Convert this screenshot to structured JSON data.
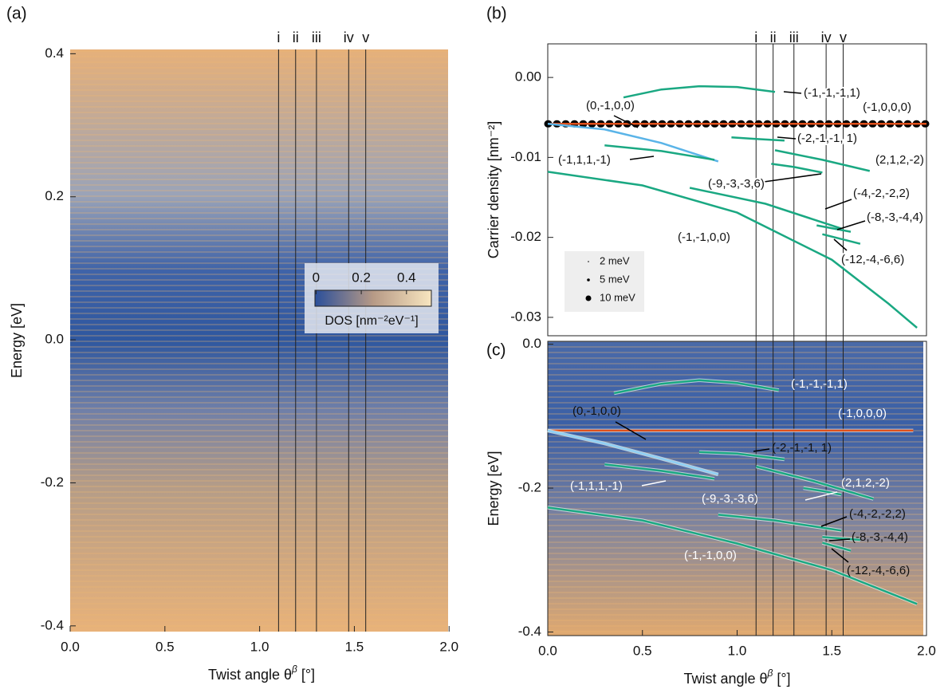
{
  "chart_data": [
    {
      "type": "heatmap",
      "panel": "(a)",
      "ylabel": "Energy [eV]",
      "xlabel": [
        "Twist angle θ",
        "β",
        " [°]"
      ],
      "xlim": [
        0,
        2.02
      ],
      "ylim": [
        -0.408,
        0.406
      ],
      "xticks": [
        {
          "value": 0,
          "label": "0.0"
        },
        0.5,
        {
          "value": 1,
          "label": "1.0"
        },
        1.5,
        {
          "value": 2,
          "label": "2.0"
        }
      ],
      "yticks": [
        -0.4,
        -0.2,
        {
          "value": 0,
          "label": "0.0"
        },
        0.2,
        0.4
      ],
      "markers": [
        {
          "value": 1.1,
          "label": "i"
        },
        {
          "value": 1.19,
          "label": "ii"
        },
        {
          "value": 1.3,
          "label": "iii"
        },
        {
          "value": 1.47,
          "label": "iv"
        },
        {
          "value": 1.56,
          "label": "v"
        }
      ],
      "colorbar": {
        "label": "DOS [nm⁻²eV⁻¹]",
        "lim": [
          -0.005,
          0.51
        ],
        "ticks": [
          0,
          0.2,
          0.4
        ]
      }
    },
    {
      "type": "line",
      "panel": "(b)",
      "ylabel": "Carrier density [nm⁻²]",
      "xlim": [
        0,
        2
      ],
      "ylim": [
        -0.0323,
        0.0042
      ],
      "yticks": [
        {
          "value": 0,
          "label": "0.00"
        },
        {
          "value": -0.01,
          "label": "-0.01"
        },
        {
          "value": -0.02,
          "label": "-0.02"
        },
        {
          "value": -0.03,
          "label": "-0.03"
        }
      ],
      "markers": [
        {
          "value": 1.1,
          "label": "i"
        },
        {
          "value": 1.19,
          "label": "ii"
        },
        {
          "value": 1.3,
          "label": "iii"
        },
        {
          "value": 1.47,
          "label": "iv"
        },
        {
          "value": 1.56,
          "label": "v"
        }
      ],
      "legend": [
        "2 meV",
        "5 meV",
        "10 meV"
      ],
      "series": [
        {
          "name": "(-1,0,0,0)",
          "color": "#e0501b",
          "x": [
            0,
            2
          ],
          "values": [
            -0.0058,
            -0.0058
          ]
        },
        {
          "name": "(0,-1,0,0)",
          "color": "#5ab4e8",
          "x": [
            0,
            0.3,
            0.6,
            0.9
          ],
          "values": [
            -0.0058,
            -0.0065,
            -0.0082,
            -0.0105
          ]
        },
        {
          "name": "(-1,-1,-1,1)",
          "color": "#1aa882",
          "x": [
            0.4,
            0.6,
            0.8,
            1.0,
            1.2
          ],
          "values": [
            -0.0025,
            -0.0015,
            -0.0011,
            -0.0012,
            -0.0018
          ]
        },
        {
          "name": "(-2,-1,-1, 1)",
          "color": "#1aa882",
          "x": [
            0.97,
            1.1,
            1.25
          ],
          "values": [
            -0.0075,
            -0.0077,
            -0.0079
          ]
        },
        {
          "name": "(-1,1,1,-1)",
          "color": "#1aa882",
          "x": [
            0.3,
            0.6,
            0.88
          ],
          "values": [
            -0.0085,
            -0.0092,
            -0.0103
          ]
        },
        {
          "name": "(2,1,2,-2)",
          "color": "#1aa882",
          "x": [
            1.2,
            1.45,
            1.7
          ],
          "values": [
            -0.0091,
            -0.0103,
            -0.0117
          ]
        },
        {
          "name": "(-9,-3,-3,6)",
          "color": "#1aa882",
          "x": [
            1.18,
            1.3,
            1.45
          ],
          "values": [
            -0.0108,
            -0.0112,
            -0.0119
          ]
        },
        {
          "name": "(-1,-1,0,0)",
          "color": "#1aa882",
          "x": [
            0,
            0.5,
            1.0,
            1.5,
            1.8,
            1.95
          ],
          "values": [
            -0.0118,
            -0.0135,
            -0.0169,
            -0.0228,
            -0.0283,
            -0.0313
          ]
        },
        {
          "name": "(-4,-2,-2,2)",
          "color": "#1aa882",
          "x": [
            0.75,
            1.15,
            1.55
          ],
          "values": [
            -0.0138,
            -0.0158,
            -0.0189
          ]
        },
        {
          "name": "(-8,-3,-4,4)",
          "color": "#1aa882",
          "x": [
            1.42,
            1.6
          ],
          "values": [
            -0.0185,
            -0.0193
          ]
        },
        {
          "name": "(-12,-4,-6,6)",
          "color": "#1aa882",
          "x": [
            1.45,
            1.65
          ],
          "values": [
            -0.0196,
            -0.0208
          ]
        }
      ]
    },
    {
      "type": "line",
      "panel": "(c)",
      "ylabel": "Energy [eV]",
      "xlabel": [
        "Twist angle θ",
        "β",
        " [°]"
      ],
      "xlim": [
        0,
        2
      ],
      "ylim": [
        -0.405,
        0.004
      ],
      "xticks": [
        {
          "value": 0,
          "label": "0.0"
        },
        0.5,
        {
          "value": 1,
          "label": "1.0"
        },
        1.5,
        {
          "value": 2,
          "label": "2.0"
        }
      ],
      "yticks": [
        -0.4,
        -0.2,
        {
          "value": 0,
          "label": "0.0"
        }
      ],
      "series": [
        {
          "name": "(-1,0,0,0)",
          "color": "#e0501b",
          "x": [
            0,
            1.93
          ],
          "values": [
            -0.12,
            -0.12
          ]
        },
        {
          "name": "(0,-1,0,0)",
          "color": "#8fd0f5",
          "x": [
            0,
            0.3,
            0.6,
            0.9
          ],
          "values": [
            -0.12,
            -0.138,
            -0.159,
            -0.181
          ]
        },
        {
          "name": "(-1,-1,-1,1)",
          "color": "#1aa882",
          "x": [
            0.35,
            0.6,
            0.8,
            1.0,
            1.22
          ],
          "values": [
            -0.068,
            -0.055,
            -0.05,
            -0.054,
            -0.064
          ]
        },
        {
          "name": "(-2,-1,-1, 1)",
          "color": "#1aa882",
          "x": [
            0.8,
            1.0,
            1.25
          ],
          "values": [
            -0.15,
            -0.152,
            -0.16
          ]
        },
        {
          "name": "(-1,1,1,-1)",
          "color": "#1aa882",
          "x": [
            0.3,
            0.6,
            0.88
          ],
          "values": [
            -0.167,
            -0.176,
            -0.187
          ]
        },
        {
          "name": "(2,1,2,-2)",
          "color": "#1aa882",
          "x": [
            1.1,
            1.4,
            1.72
          ],
          "values": [
            -0.17,
            -0.19,
            -0.215
          ]
        },
        {
          "name": "(-9,-3,-3,6)",
          "color": "#1aa882",
          "x": [
            1.35,
            1.45,
            1.55
          ],
          "values": [
            -0.2,
            -0.204,
            -0.209
          ]
        },
        {
          "name": "(-1,-1,0,0)",
          "color": "#1aa882",
          "x": [
            0,
            0.5,
            1.0,
            1.5,
            1.95
          ],
          "values": [
            -0.227,
            -0.245,
            -0.277,
            -0.314,
            -0.361
          ]
        },
        {
          "name": "(-4,-2,-2,2)",
          "color": "#1aa882",
          "x": [
            0.9,
            1.2,
            1.55
          ],
          "values": [
            -0.237,
            -0.245,
            -0.259
          ]
        },
        {
          "name": "(-8,-3,-4,4)",
          "color": "#1aa882",
          "x": [
            1.45,
            1.65
          ],
          "values": [
            -0.268,
            -0.272
          ]
        },
        {
          "name": "(-12,-4,-6,6)",
          "color": "#1aa882",
          "x": [
            1.45,
            1.6
          ],
          "values": [
            -0.276,
            -0.287
          ]
        }
      ]
    }
  ]
}
